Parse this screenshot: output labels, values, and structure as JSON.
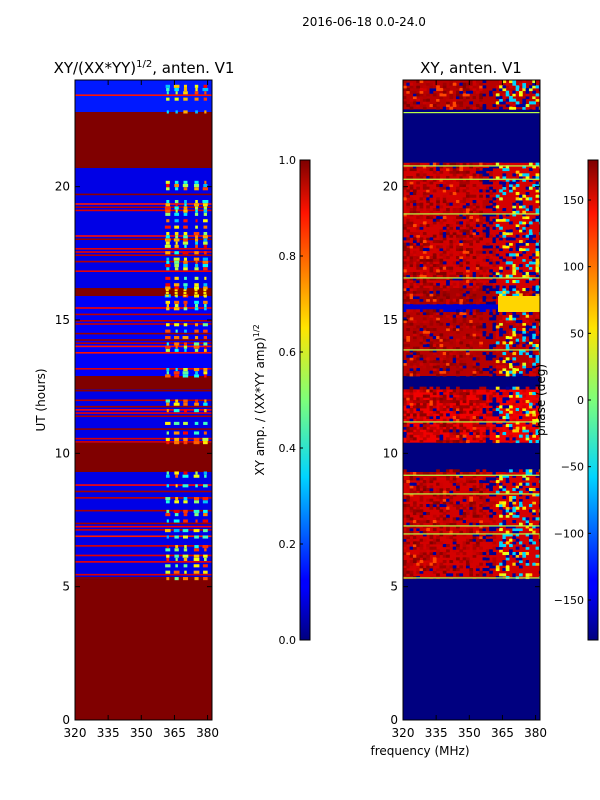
{
  "figure": {
    "suptitle": "2016-06-18 0.0-24.0",
    "xlabel": "frequency (MHz)"
  },
  "chart_data": [
    {
      "type": "heatmap",
      "title": "XY/(XX*YY)^{1/2}, anten. V1",
      "title_main": "XY/(XX*YY)",
      "title_sup": "1/2",
      "title_tail": ", anten. V1",
      "xlabel": "",
      "ylabel": "UT (hours)",
      "xlim": [
        320,
        382
      ],
      "ylim": [
        0,
        24
      ],
      "xticks": [
        320,
        335,
        350,
        365,
        380
      ],
      "yticks": [
        0,
        5,
        10,
        15,
        20
      ],
      "colormap": "jet",
      "background_value": 1.0,
      "row_bands": [
        {
          "start": 0.0,
          "end": 5.3,
          "value": 1.0
        },
        {
          "start": 5.3,
          "end": 9.3,
          "value": 0.1
        },
        {
          "start": 9.3,
          "end": 10.4,
          "value": 1.0
        },
        {
          "start": 10.4,
          "end": 12.4,
          "value": 0.1
        },
        {
          "start": 12.4,
          "end": 12.9,
          "value": 1.0
        },
        {
          "start": 12.9,
          "end": 15.9,
          "value": 0.12
        },
        {
          "start": 15.9,
          "end": 16.2,
          "value": 1.0
        },
        {
          "start": 16.2,
          "end": 20.7,
          "value": 0.1
        },
        {
          "start": 20.7,
          "end": 22.8,
          "value": 1.0
        },
        {
          "start": 22.8,
          "end": 24.0,
          "value": 0.15
        }
      ],
      "bright_columns_mhz": [
        362,
        366,
        370,
        375,
        379
      ],
      "bright_column_value": 0.5,
      "colorbar": {
        "label": "XY amp. / (XX*YY amp)^{1/2}",
        "label_main": "XY amp. / (XX*YY amp)",
        "label_sup": "1/2",
        "min": 0.0,
        "max": 1.0,
        "ticks": [
          "0.0",
          "0.2",
          "0.4",
          "0.6",
          "0.8",
          "1.0"
        ],
        "tick_values": [
          0.0,
          0.2,
          0.4,
          0.6,
          0.8,
          1.0
        ]
      }
    },
    {
      "type": "heatmap",
      "title": "XY, anten. V1",
      "xlabel": "",
      "ylabel": "",
      "xlim": [
        320,
        382
      ],
      "ylim": [
        0,
        24
      ],
      "xticks": [
        320,
        335,
        350,
        365,
        380
      ],
      "yticks": [
        0,
        5,
        10,
        15,
        20
      ],
      "colormap": "jet",
      "background_value": -180,
      "row_bands": [
        {
          "start": 0.0,
          "end": 5.3,
          "value": -180
        },
        {
          "start": 5.3,
          "end": 9.3,
          "value": 150
        },
        {
          "start": 9.3,
          "end": 10.4,
          "value": -180
        },
        {
          "start": 10.4,
          "end": 12.4,
          "value": 140
        },
        {
          "start": 12.4,
          "end": 12.9,
          "value": -180
        },
        {
          "start": 12.9,
          "end": 15.3,
          "value": 160
        },
        {
          "start": 15.3,
          "end": 15.6,
          "value": -150
        },
        {
          "start": 15.6,
          "end": 16.2,
          "value": 165
        },
        {
          "start": 16.2,
          "end": 20.9,
          "value": 150
        },
        {
          "start": 20.9,
          "end": 22.9,
          "value": -180
        },
        {
          "start": 22.9,
          "end": 24.0,
          "value": 160
        }
      ],
      "colorbar": {
        "label": "phase (deg)",
        "min": -180,
        "max": 180,
        "ticks": [
          "−150",
          "−100",
          "−50",
          "0",
          "50",
          "100",
          "150"
        ],
        "tick_values": [
          -150,
          -100,
          -50,
          0,
          50,
          100,
          150
        ]
      }
    }
  ]
}
